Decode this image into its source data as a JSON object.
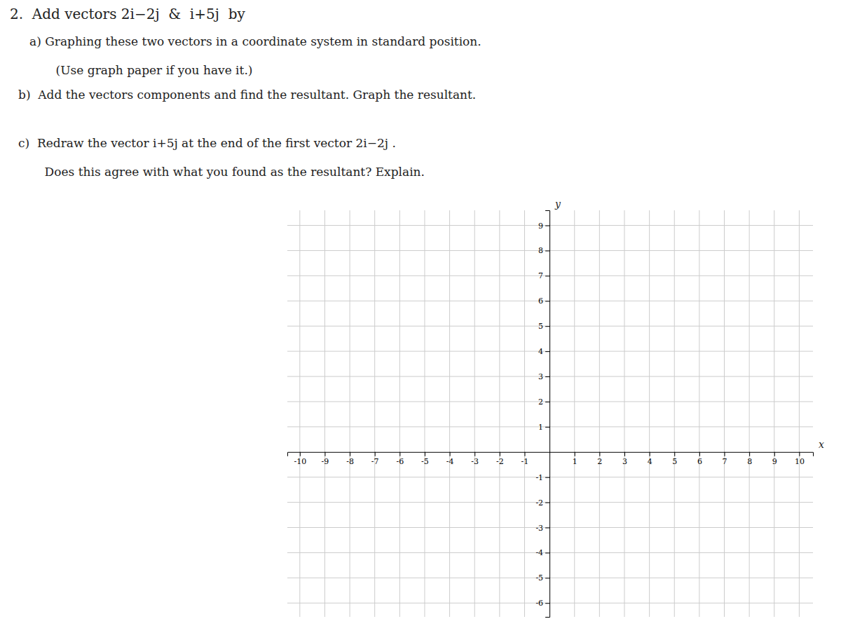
{
  "chart_data": {
    "type": "scatter",
    "title": "2.  Add vectors 2i−2j  &  i+5j  by",
    "annotations": [
      "a) Graphing these two vectors in a coordinate system in standard position.",
      "    (Use graph paper if you have it.)",
      "b)  Add the vectors components and find the resultant. Graph the resultant.",
      "c)  Redraw the vector i+5j at the end of the first vector 2i−2j .",
      "    Does this agree with what you found as the resultant? Explain."
    ],
    "xlabel": "x",
    "ylabel": "y",
    "xlim": [
      -10.5,
      10.55
    ],
    "ylim": [
      -6.55,
      9.6
    ],
    "xticks": [
      -10,
      -9,
      -8,
      -7,
      -6,
      -5,
      -4,
      -3,
      -2,
      -1,
      1,
      2,
      3,
      4,
      5,
      6,
      7,
      8,
      9,
      10
    ],
    "yticks": [
      -6,
      -5,
      -4,
      -3,
      -2,
      -1,
      1,
      2,
      3,
      4,
      5,
      6,
      7,
      8,
      9
    ],
    "grid": true
  }
}
